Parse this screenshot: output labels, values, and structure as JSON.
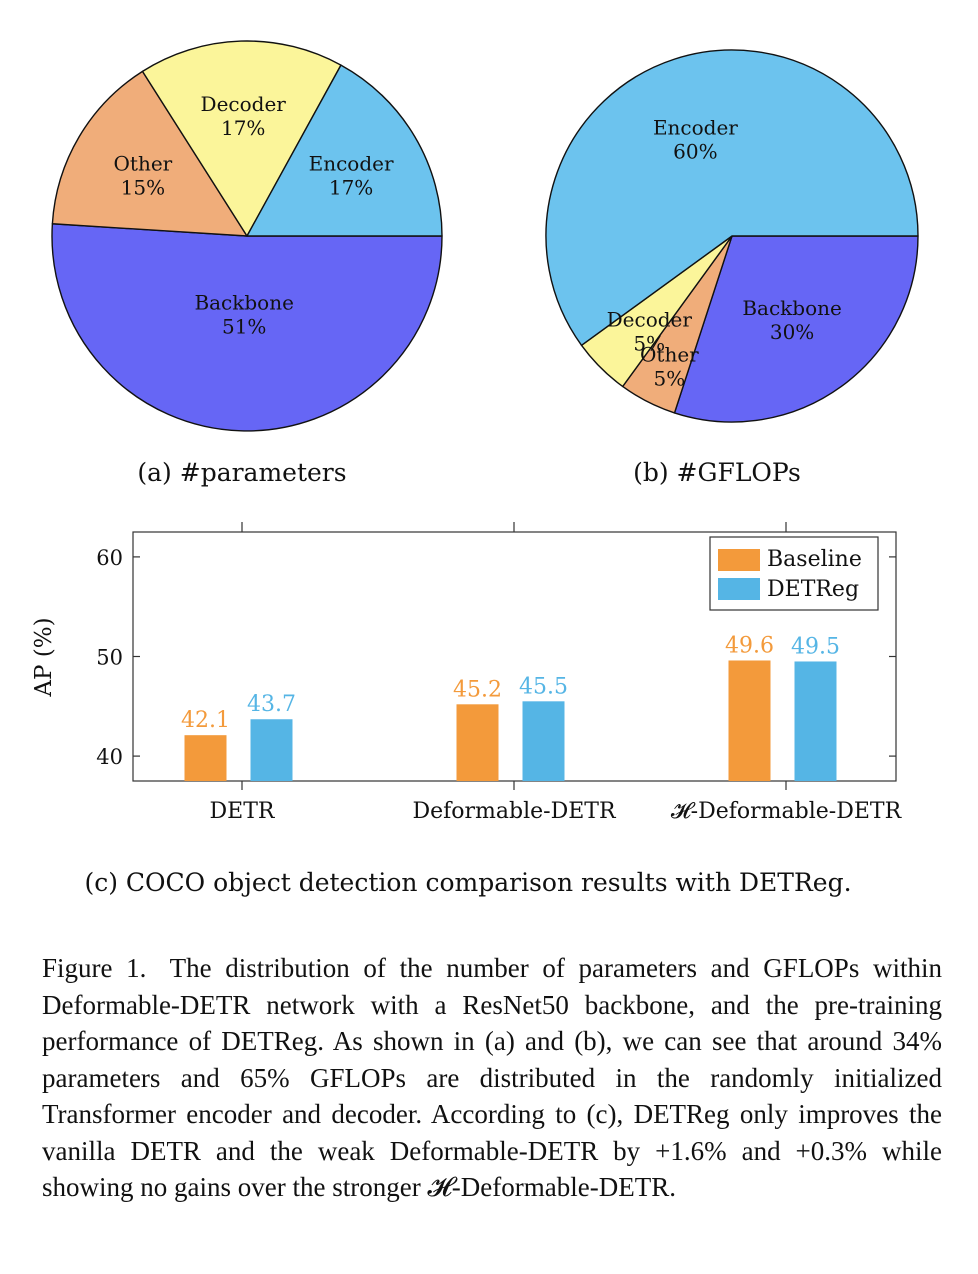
{
  "colors": {
    "backbone": "#6666f5",
    "encoder": "#6cc3ee",
    "decoder": "#fbf59a",
    "other": "#f0ad7a",
    "baseline": "#f39a3b",
    "detreg": "#55b5e5"
  },
  "chart_data": [
    {
      "type": "pie",
      "title": "(a) #parameters",
      "slices": [
        {
          "label": "Backbone",
          "value": 51,
          "value_label": "51%"
        },
        {
          "label": "Other",
          "value": 15,
          "value_label": "15%"
        },
        {
          "label": "Decoder",
          "value": 17,
          "value_label": "17%"
        },
        {
          "label": "Encoder",
          "value": 17,
          "value_label": "17%"
        }
      ]
    },
    {
      "type": "pie",
      "title": "(b) #GFLOPs",
      "slices": [
        {
          "label": "Backbone",
          "value": 30,
          "value_label": "30%"
        },
        {
          "label": "Other",
          "value": 5,
          "value_label": "5%"
        },
        {
          "label": "Decoder",
          "value": 5,
          "value_label": "5%"
        },
        {
          "label": "Encoder",
          "value": 60,
          "value_label": "60%"
        }
      ]
    },
    {
      "type": "bar",
      "title": "(c) COCO object detection comparison results with DETReg.",
      "categories": [
        "DETR",
        "Deformable-DETR",
        "𝓗-Deformable-DETR"
      ],
      "series": [
        {
          "name": "Baseline",
          "values": [
            42.1,
            45.2,
            49.6
          ],
          "labels": [
            "42.1",
            "45.2",
            "49.6"
          ]
        },
        {
          "name": "DETReg",
          "values": [
            43.7,
            45.5,
            49.5
          ],
          "labels": [
            "43.7",
            "45.5",
            "49.5"
          ]
        }
      ],
      "ylabel": "AP (%)",
      "ylim": [
        37.5,
        62.5
      ],
      "yticks": [
        40,
        50,
        60
      ],
      "ytick_labels": [
        "40",
        "50",
        "60"
      ],
      "legend_position": "top-right"
    }
  ],
  "caption": {
    "label": "Figure 1.",
    "text": "The distribution of the number of parameters and GFLOPs within Deformable-DETR network with a ResNet50 backbone, and the pre-training performance of DETReg. As shown in (a) and (b), we can see that around 34% parameters and 65% GFLOPs are distributed in the randomly initialized Transformer encoder and decoder. According to (c), DETReg only improves the vanilla DETR and the weak Deformable-DETR by +1.6% and +0.3% while showing no gains over the stronger 𝓗-Deformable-DETR."
  }
}
